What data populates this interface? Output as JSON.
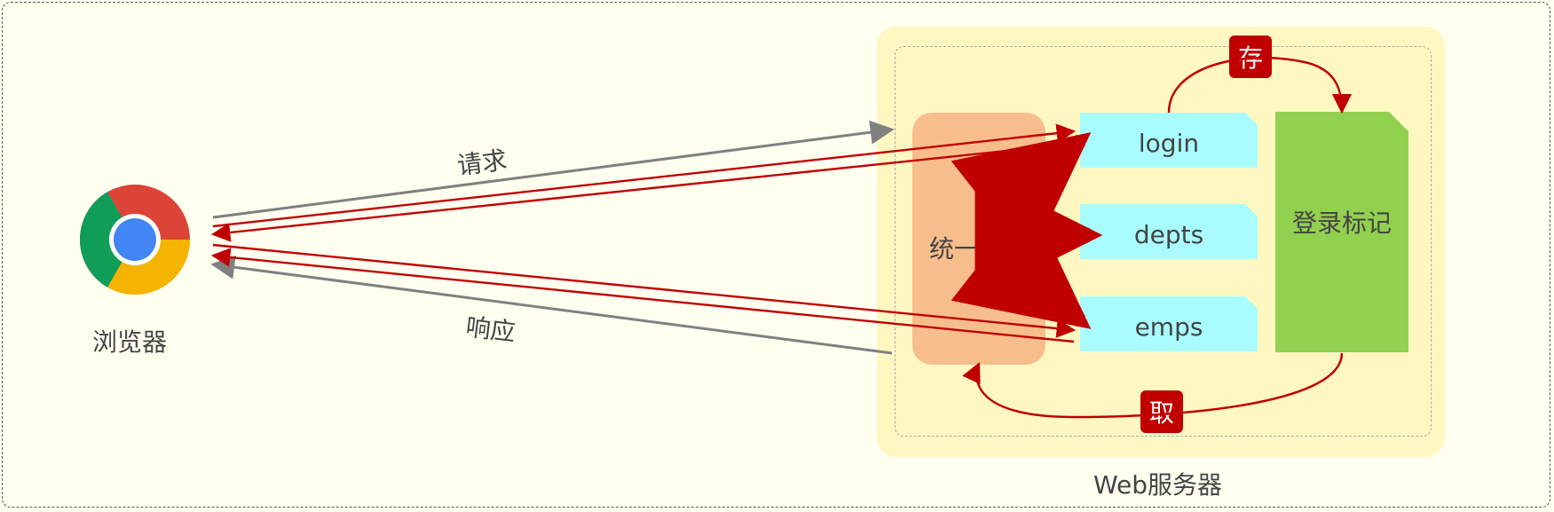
{
  "browser": {
    "label": "浏览器",
    "icon": "chrome-logo"
  },
  "request": "请求",
  "response": "响应",
  "server": {
    "title": "Web服务器",
    "intercept": "统一拦截",
    "pages": [
      "login",
      "depts",
      "emps"
    ],
    "record": "登录标记"
  },
  "tags": {
    "store": "存",
    "fetch": "取"
  },
  "colors": {
    "server": "#fff7c2",
    "intercept": "#f7bd8b",
    "page": "#a8fbff",
    "record": "#92d050",
    "arrow_red": "#c00000",
    "arrow_gray": "#808080"
  }
}
